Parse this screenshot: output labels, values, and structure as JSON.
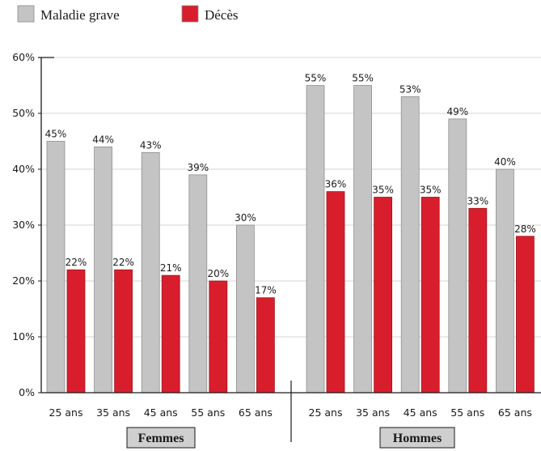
{
  "chart_data": {
    "type": "bar",
    "groups": [
      "Femmes",
      "Hommes"
    ],
    "categories": [
      "25 ans",
      "35 ans",
      "45 ans",
      "55 ans",
      "65 ans"
    ],
    "series": [
      {
        "name": "Maladie grave",
        "color": "#c4c4c4",
        "values": {
          "Femmes": [
            45,
            44,
            43,
            39,
            30
          ],
          "Hommes": [
            55,
            55,
            53,
            49,
            40
          ]
        }
      },
      {
        "name": "Décès",
        "color": "#d81e2c",
        "values": {
          "Femmes": [
            22,
            22,
            21,
            20,
            17
          ],
          "Hommes": [
            36,
            35,
            35,
            33,
            28
          ]
        }
      }
    ],
    "yticks": [
      "0%",
      "10%",
      "20%",
      "30%",
      "40%",
      "50%",
      "60%"
    ],
    "ylim": [
      0,
      60
    ],
    "unit": "%",
    "grid": true,
    "legend_position": "top-left"
  }
}
